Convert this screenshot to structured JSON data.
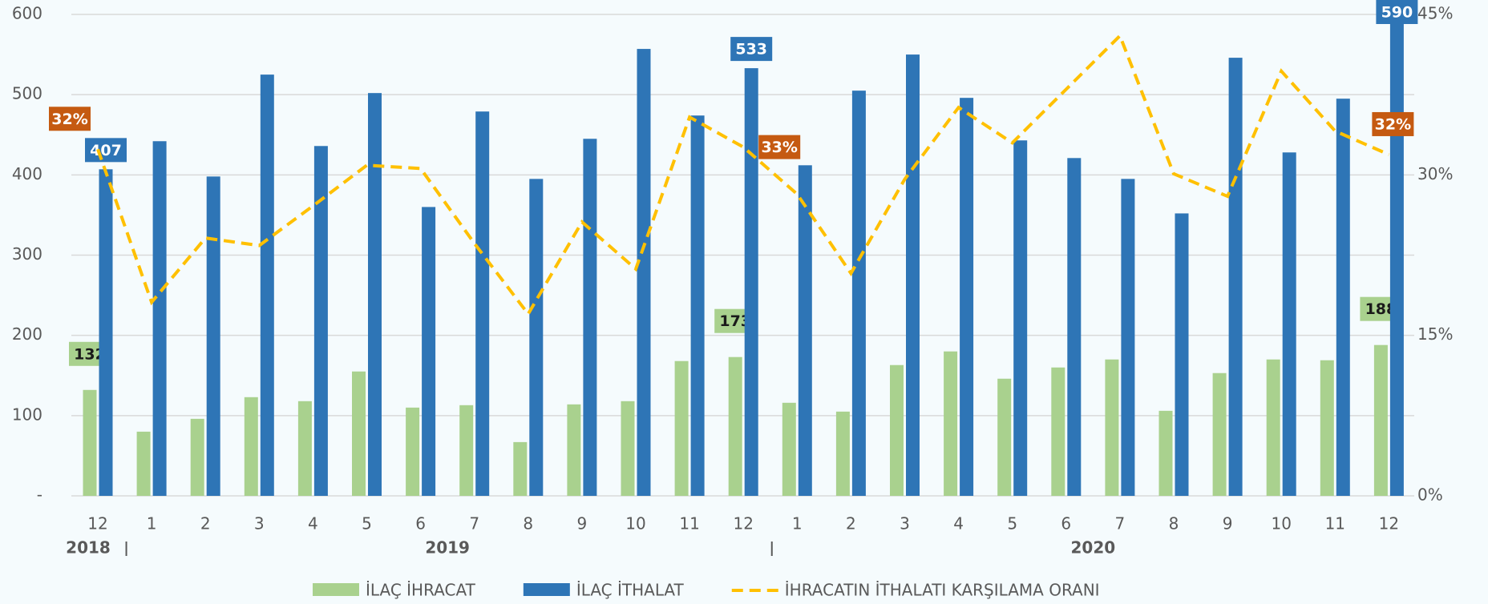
{
  "chart_data": {
    "type": "bar-line",
    "categories": [
      "12",
      "1",
      "2",
      "3",
      "4",
      "5",
      "6",
      "7",
      "8",
      "9",
      "10",
      "11",
      "12",
      "1",
      "2",
      "3",
      "4",
      "5",
      "6",
      "7",
      "8",
      "9",
      "10",
      "11",
      "12"
    ],
    "x_groups": [
      "2018",
      "2019",
      "2020"
    ],
    "series": [
      {
        "name": "İLAÇ İHRACAT",
        "type": "bar",
        "color": "#a9d18e",
        "label_color": "#a9d18e",
        "label_text_color": "#1a1a1a",
        "values": [
          132,
          80,
          96,
          123,
          118,
          155,
          110,
          113,
          67,
          114,
          118,
          168,
          173,
          116,
          105,
          163,
          180,
          146,
          160,
          170,
          106,
          153,
          170,
          169,
          188
        ],
        "value_labels": [
          "132",
          null,
          null,
          null,
          null,
          null,
          null,
          null,
          null,
          null,
          null,
          null,
          "173",
          null,
          null,
          null,
          null,
          null,
          null,
          null,
          null,
          null,
          null,
          null,
          "188"
        ]
      },
      {
        "name": "İLAÇ İTHALAT",
        "type": "bar",
        "color": "#2e75b6",
        "label_color": "#2e75b6",
        "label_text_color": "#ffffff",
        "values": [
          407,
          442,
          398,
          525,
          436,
          502,
          360,
          479,
          395,
          445,
          557,
          474,
          533,
          412,
          505,
          550,
          496,
          443,
          421,
          395,
          352,
          546,
          428,
          495,
          590
        ],
        "value_labels": [
          "407",
          null,
          null,
          null,
          null,
          null,
          null,
          null,
          null,
          null,
          null,
          null,
          "533",
          null,
          null,
          null,
          null,
          null,
          null,
          null,
          null,
          null,
          null,
          null,
          "590"
        ]
      },
      {
        "name": "İHRACATIN İTHALATI KARŞILAMA ORANI",
        "type": "line",
        "axis": "y2",
        "color": "#ffc000",
        "dashed": true,
        "label_color": "#c55a11",
        "label_text_color": "#ffffff",
        "values": [
          32.4,
          18.1,
          24.1,
          23.4,
          27.1,
          30.9,
          30.6,
          23.6,
          17.0,
          25.6,
          21.2,
          35.4,
          32.6,
          28.2,
          20.8,
          29.6,
          36.3,
          33.0,
          38.0,
          43.0,
          30.1,
          28.0,
          39.7,
          34.1,
          31.9
        ],
        "value_labels": [
          "32%",
          null,
          null,
          null,
          null,
          null,
          null,
          null,
          null,
          null,
          null,
          null,
          "33%",
          null,
          null,
          null,
          null,
          null,
          null,
          null,
          null,
          null,
          null,
          null,
          "32%"
        ]
      }
    ],
    "ylim": [
      0,
      600
    ],
    "yticks": [
      {
        "value": 0,
        "label": "-"
      },
      100,
      200,
      300,
      400,
      500,
      600
    ],
    "y2lim": [
      0,
      45
    ],
    "y2ticks": [
      {
        "value": 0,
        "label": "0%"
      },
      {
        "value": 15,
        "label": "15%"
      },
      {
        "value": 30,
        "label": "30%"
      },
      {
        "value": 45,
        "label": "45%"
      }
    ],
    "grid": true,
    "legend": "bottom"
  }
}
